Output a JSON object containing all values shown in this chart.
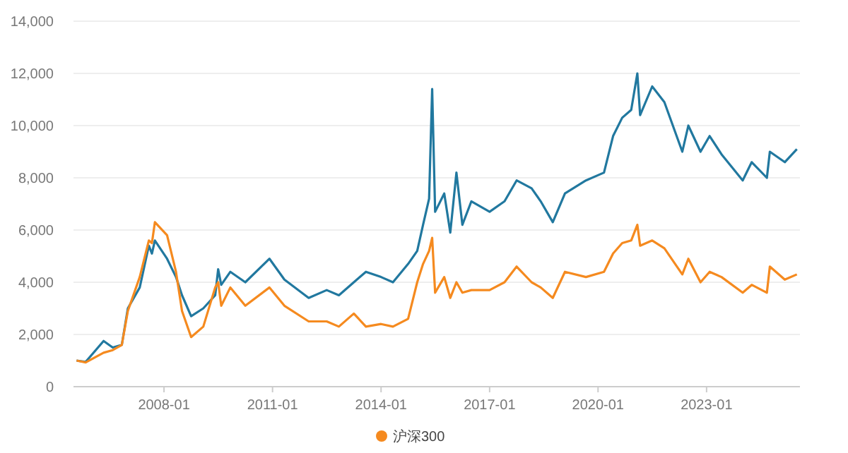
{
  "chart_data": {
    "type": "line",
    "x": [
      "2005-08",
      "2005-11",
      "2006-05",
      "2006-08",
      "2006-11",
      "2007-01",
      "2007-05",
      "2007-08",
      "2007-09",
      "2007-10",
      "2008-02",
      "2008-05",
      "2008-07",
      "2008-10",
      "2009-02",
      "2009-06",
      "2009-07",
      "2009-08",
      "2009-11",
      "2010-04",
      "2010-12",
      "2011-05",
      "2012-01",
      "2012-07",
      "2012-11",
      "2013-04",
      "2013-08",
      "2014-01",
      "2014-05",
      "2014-10",
      "2015-01",
      "2015-03",
      "2015-05",
      "2015-06",
      "2015-07",
      "2015-10",
      "2015-12",
      "2016-02",
      "2016-04",
      "2016-07",
      "2017-01",
      "2017-06",
      "2017-10",
      "2018-03",
      "2018-06",
      "2018-10",
      "2019-02",
      "2019-09",
      "2020-03",
      "2020-06",
      "2020-09",
      "2020-12",
      "2021-02",
      "2021-03",
      "2021-07",
      "2021-11",
      "2022-05",
      "2022-07",
      "2022-11",
      "2023-02",
      "2023-06",
      "2024-01",
      "2024-04",
      "2024-09",
      "2024-10",
      "2025-03",
      "2025-07"
    ],
    "series": [
      {
        "color": "#21789f",
        "values": [
          1000,
          950,
          1750,
          1500,
          1600,
          3000,
          3800,
          5400,
          5100,
          5600,
          4900,
          4200,
          3500,
          2700,
          3000,
          3500,
          4500,
          3900,
          4400,
          4000,
          4900,
          4100,
          3400,
          3700,
          3500,
          4000,
          4400,
          4200,
          4000,
          4700,
          5200,
          6200,
          7200,
          11400,
          6700,
          7400,
          5900,
          8200,
          6200,
          7100,
          6700,
          7100,
          7900,
          7600,
          7100,
          6300,
          7400,
          7900,
          8200,
          9600,
          10300,
          10600,
          12000,
          10400,
          11500,
          10900,
          9000,
          10000,
          9000,
          9600,
          8900,
          7900,
          8600,
          8000,
          9000,
          8600,
          9100
        ]
      },
      {
        "name": "沪深300",
        "color": "#f58a1f",
        "values": [
          1000,
          930,
          1300,
          1400,
          1600,
          2900,
          4200,
          5600,
          5500,
          6300,
          5800,
          4400,
          2900,
          1900,
          2300,
          3800,
          4000,
          3100,
          3800,
          3100,
          3800,
          3100,
          2500,
          2500,
          2300,
          2800,
          2300,
          2400,
          2300,
          2600,
          4000,
          4700,
          5200,
          5700,
          3600,
          4200,
          3400,
          4000,
          3600,
          3700,
          3700,
          4000,
          4600,
          4000,
          3800,
          3400,
          4400,
          4200,
          4400,
          5100,
          5500,
          5600,
          6200,
          5400,
          5600,
          5300,
          4300,
          4900,
          4000,
          4400,
          4200,
          3600,
          3900,
          3600,
          4600,
          4100,
          4300
        ]
      }
    ],
    "xlim": [
      "2005-07",
      "2025-08"
    ],
    "xticks": [
      "2008-01",
      "2011-01",
      "2014-01",
      "2017-01",
      "2020-01",
      "2023-01"
    ],
    "ylim": [
      0,
      14000
    ],
    "yticks": [
      0,
      {
        "value": 2000,
        "label": "2,000"
      },
      {
        "value": 4000,
        "label": "4,000"
      },
      {
        "value": 6000,
        "label": "6,000"
      },
      {
        "value": 8000,
        "label": "8,000"
      },
      {
        "value": 10000,
        "label": "10,000"
      },
      {
        "value": 12000,
        "label": "12,000"
      },
      {
        "value": 14000,
        "label": "14,000"
      }
    ],
    "grid": "y",
    "legend": "bottom"
  }
}
